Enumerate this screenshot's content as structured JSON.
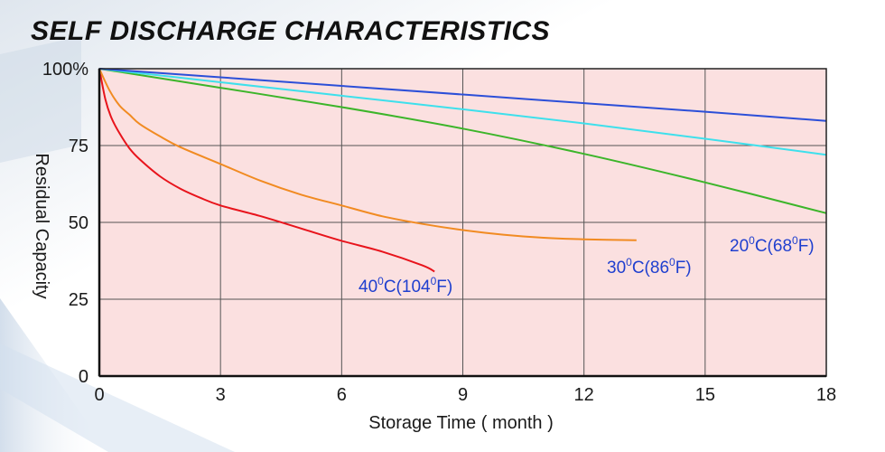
{
  "title": "SELF DISCHARGE CHARACTERISTICS",
  "colors": {
    "plot_bg": "#fbe0e0",
    "grid": "#555555",
    "label_text": "#1f3fcf"
  },
  "chart_data": {
    "type": "line",
    "title": "SELF DISCHARGE CHARACTERISTICS",
    "xlabel": "Storage Time ( month )",
    "ylabel": "Residual Capacity",
    "xlim": [
      0,
      18
    ],
    "ylim": [
      0,
      100
    ],
    "x_ticks": [
      0,
      3,
      6,
      9,
      12,
      15,
      18
    ],
    "y_ticks": [
      0,
      25,
      50,
      75,
      100
    ],
    "y_tick_labels": [
      "0",
      "25",
      "50",
      "75",
      "100%"
    ],
    "grid": true,
    "legend": "inline labels",
    "series": [
      {
        "name": "40°C(104°F)",
        "label_main": "40",
        "label_sup1": "0",
        "label_mid": "C(104",
        "label_sup2": "0",
        "label_end": "F)",
        "color": "#e8141c",
        "points": [
          [
            0,
            100
          ],
          [
            0.15,
            90
          ],
          [
            0.3,
            84
          ],
          [
            0.5,
            79
          ],
          [
            0.75,
            74
          ],
          [
            1,
            70.5
          ],
          [
            1.5,
            65
          ],
          [
            2,
            61
          ],
          [
            2.5,
            58
          ],
          [
            3,
            55.5
          ],
          [
            4,
            52
          ],
          [
            5,
            48
          ],
          [
            6,
            44
          ],
          [
            7,
            40.5
          ],
          [
            8,
            36
          ],
          [
            8.3,
            34
          ]
        ]
      },
      {
        "name": "30°C(86°F)",
        "label_main": "30",
        "label_sup1": "0",
        "label_mid": "C(86",
        "label_sup2": "0",
        "label_end": "F)",
        "color": "#f18b22",
        "points": [
          [
            0,
            100
          ],
          [
            0.25,
            93
          ],
          [
            0.5,
            88
          ],
          [
            0.75,
            85
          ],
          [
            1,
            82
          ],
          [
            1.5,
            78
          ],
          [
            2,
            74.5
          ],
          [
            3,
            69
          ],
          [
            4,
            63.5
          ],
          [
            5,
            59
          ],
          [
            6,
            55.5
          ],
          [
            7,
            52
          ],
          [
            8,
            49.5
          ],
          [
            9,
            47.5
          ],
          [
            10,
            46
          ],
          [
            11,
            45
          ],
          [
            12,
            44.5
          ],
          [
            13.3,
            44.2
          ]
        ]
      },
      {
        "name": "20°C(68°F)",
        "label_main": "20",
        "label_sup1": "0",
        "label_mid": "C(68",
        "label_sup2": "0",
        "label_end": "F)",
        "color": "#3cb52a",
        "points": [
          [
            0,
            100
          ],
          [
            3,
            93.8
          ],
          [
            6,
            87.5
          ],
          [
            9,
            80.5
          ],
          [
            12,
            72.3
          ],
          [
            15,
            63
          ],
          [
            18,
            53
          ]
        ]
      },
      {
        "name": "",
        "color": "#3ee0ec",
        "points": [
          [
            0,
            100
          ],
          [
            3,
            95.6
          ],
          [
            6,
            91.2
          ],
          [
            9,
            86.8
          ],
          [
            12,
            82.2
          ],
          [
            15,
            77.2
          ],
          [
            18,
            72
          ]
        ]
      },
      {
        "name": "",
        "color": "#2c4fd8",
        "points": [
          [
            0,
            100
          ],
          [
            3,
            97.2
          ],
          [
            6,
            94.4
          ],
          [
            9,
            91.6
          ],
          [
            12,
            88.8
          ],
          [
            15,
            86
          ],
          [
            18,
            83
          ]
        ]
      }
    ]
  }
}
